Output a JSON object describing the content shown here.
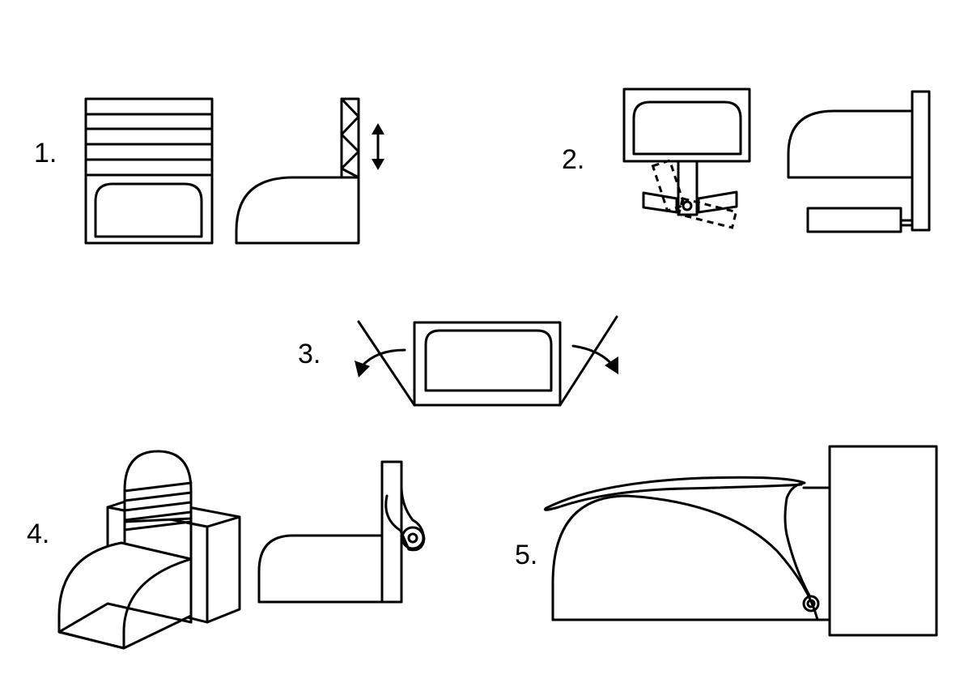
{
  "diagrams": [
    {
      "number": "1."
    },
    {
      "number": "2."
    },
    {
      "number": "3."
    },
    {
      "number": "4."
    },
    {
      "number": "5."
    }
  ]
}
